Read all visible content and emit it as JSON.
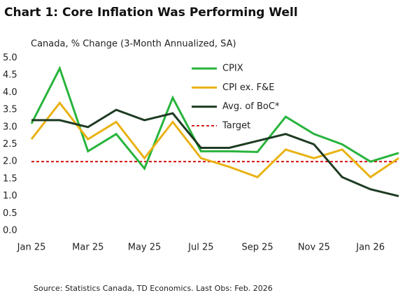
{
  "chart_data": {
    "type": "line",
    "title": "Chart 1: Core Inflation Was Performing Well",
    "subtitle": "Canada, % Change (3-Month Annualized, SA)",
    "source": "Source: Statistics Canada, TD Economics.  Last Obs: Feb. 2026",
    "categories": [
      "Jan 25",
      null,
      "Mar 25",
      null,
      "May 25",
      null,
      "Jul 25",
      null,
      "Sep 25",
      null,
      "Nov 25",
      null,
      "Jan 26",
      null
    ],
    "ylim": [
      0,
      5
    ],
    "yticks": [
      {
        "value": 0,
        "label": "0.0"
      },
      {
        "value": 0.5,
        "label": "0.5"
      },
      {
        "value": 1,
        "label": "1.0"
      },
      {
        "value": 1.5,
        "label": "1.5"
      },
      {
        "value": 2,
        "label": "2.0"
      },
      {
        "value": 2.5,
        "label": "2.5"
      },
      {
        "value": 3,
        "label": "3.0"
      },
      {
        "value": 3.5,
        "label": "3.5"
      },
      {
        "value": 4,
        "label": "4.0"
      },
      {
        "value": 4.5,
        "label": "4.5"
      },
      {
        "value": 5,
        "label": "5.0"
      }
    ],
    "grid": false,
    "series": [
      {
        "name": "CPIX",
        "color": "#27b43c",
        "values": [
          3.1,
          4.7,
          2.3,
          2.8,
          1.8,
          3.85,
          2.3,
          2.3,
          2.28,
          3.3,
          2.8,
          2.5,
          2.0,
          2.25
        ]
      },
      {
        "name": "CPI ex. F&E",
        "color": "#e9b213",
        "values": [
          2.65,
          3.7,
          2.65,
          3.15,
          2.1,
          3.15,
          2.1,
          1.85,
          1.55,
          2.35,
          2.1,
          2.35,
          1.55,
          2.1
        ]
      },
      {
        "name": "Avg. of BoC*",
        "color": "#1d3b22",
        "values": [
          3.2,
          3.2,
          3.0,
          3.5,
          3.2,
          3.4,
          2.4,
          2.4,
          2.6,
          2.8,
          2.5,
          1.55,
          1.2,
          1.0
        ]
      },
      {
        "name": "Target",
        "color": "#d00000",
        "dashed": true,
        "values": [
          2,
          2,
          2,
          2,
          2,
          2,
          2,
          2,
          2,
          2,
          2,
          2,
          2,
          2
        ]
      }
    ]
  }
}
